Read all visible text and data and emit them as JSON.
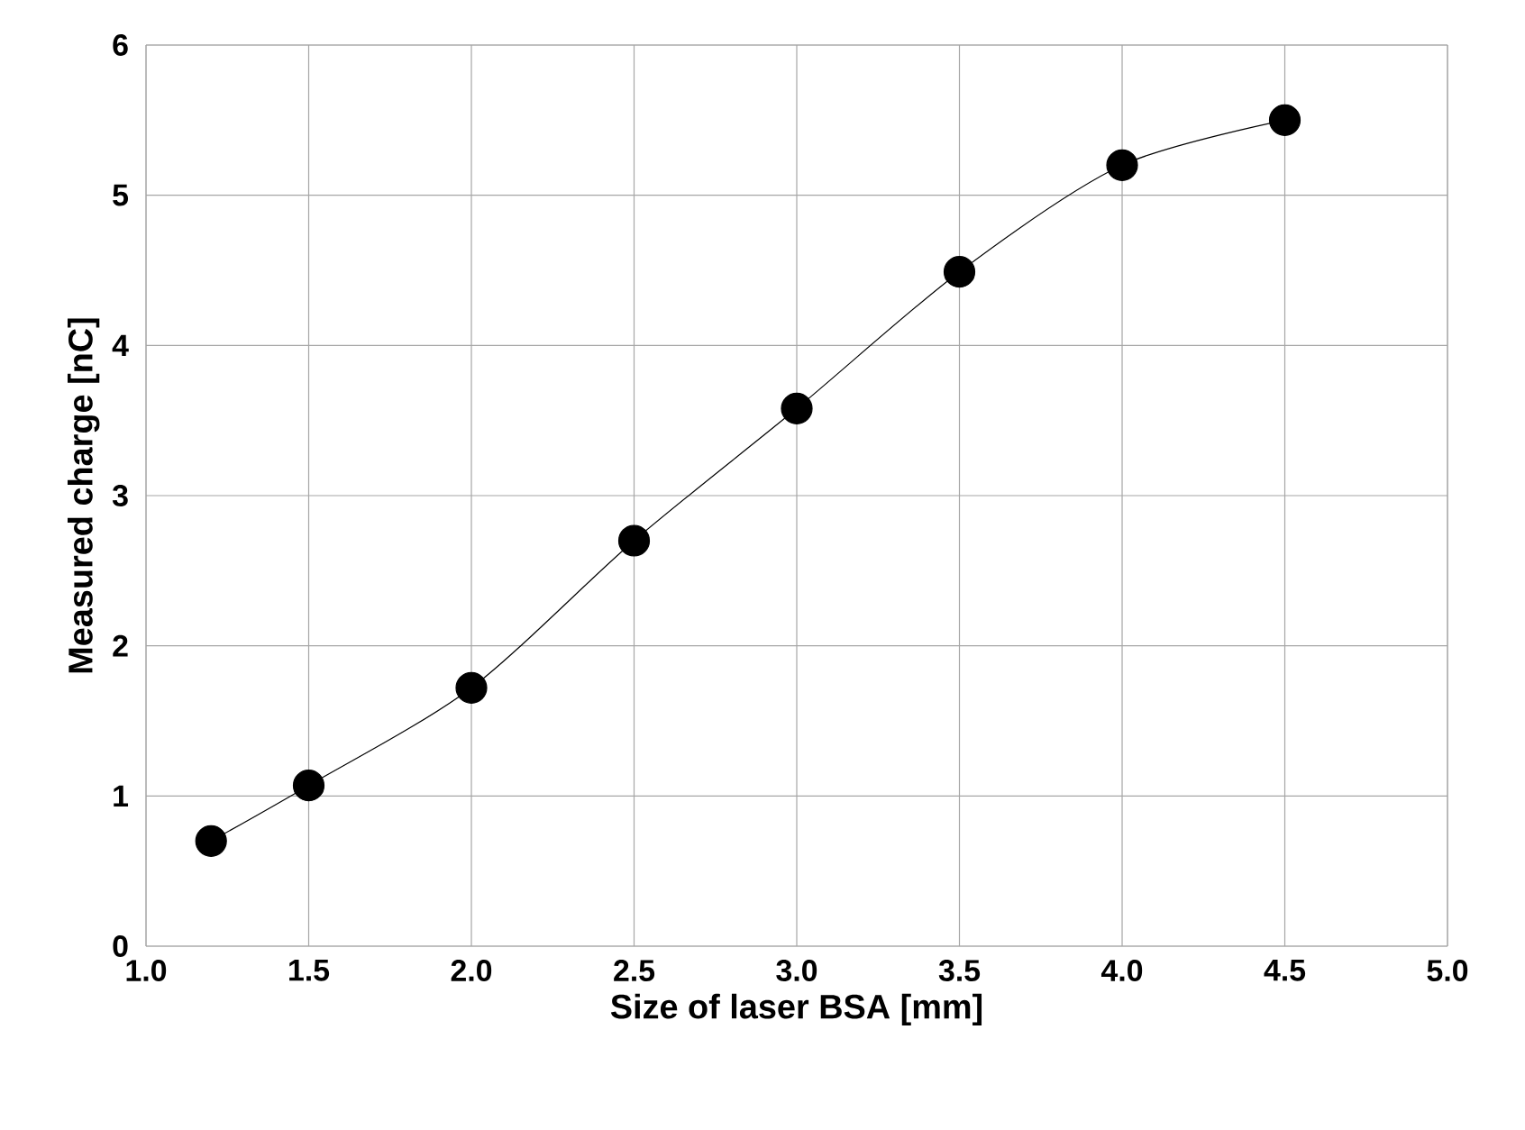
{
  "chart_data": {
    "type": "line",
    "xlabel": "Size of laser BSA [mm]",
    "ylabel": "Measured charge [nC]",
    "x": [
      1.2,
      1.5,
      2.0,
      2.5,
      3.0,
      3.5,
      4.0,
      4.5
    ],
    "series": [
      {
        "color": "#000000",
        "values": [
          0.7,
          1.07,
          1.72,
          2.7,
          3.58,
          4.49,
          5.2,
          5.5
        ]
      }
    ],
    "xlim": [
      1.0,
      5.0
    ],
    "xticks": [
      {
        "value": 1.0,
        "label": "1.0"
      },
      {
        "value": 1.5,
        "label": "1.5"
      },
      {
        "value": 2.0,
        "label": "2.0"
      },
      {
        "value": 2.5,
        "label": "2.5"
      },
      {
        "value": 3.0,
        "label": "3.0"
      },
      {
        "value": 3.5,
        "label": "3.5"
      },
      {
        "value": 4.0,
        "label": "4.0"
      },
      {
        "value": 4.5,
        "label": "4.5"
      },
      {
        "value": 5.0,
        "label": "5.0"
      }
    ],
    "ylim": [
      0,
      6
    ],
    "yticks": [
      0,
      1,
      2,
      3,
      4,
      5,
      6
    ],
    "grid": true,
    "marker": "circle",
    "line_style": "solid"
  }
}
